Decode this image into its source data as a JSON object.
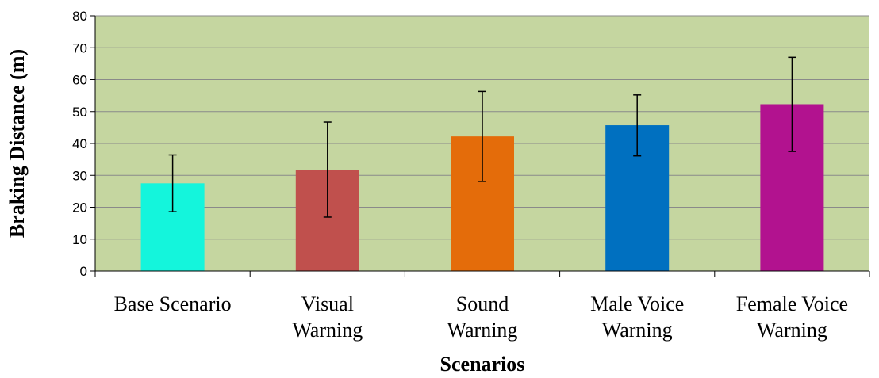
{
  "chart_data": {
    "type": "bar",
    "title": "",
    "xlabel": "Scenarios",
    "ylabel": "Braking Distance (m)",
    "ylim": [
      0,
      80
    ],
    "yticks": [
      0,
      10,
      20,
      30,
      40,
      50,
      60,
      70,
      80
    ],
    "grid": true,
    "legend": "none",
    "plot_background": "#c5d6a0",
    "categories": [
      [
        "Base Scenario"
      ],
      [
        "Visual",
        "Warning"
      ],
      [
        "Sound",
        "Warning"
      ],
      [
        "Male Voice",
        "Warning"
      ],
      [
        "Female Voice",
        "Warning"
      ]
    ],
    "values": [
      27.5,
      31.8,
      42.2,
      45.7,
      52.3
    ],
    "error_low": [
      18.6,
      16.9,
      28.1,
      36.1,
      37.5
    ],
    "error_high": [
      36.4,
      46.7,
      56.3,
      55.2,
      67.0
    ],
    "colors": [
      "#14f5dc",
      "#c0504d",
      "#e46c0a",
      "#0070c0",
      "#b2128f"
    ]
  }
}
